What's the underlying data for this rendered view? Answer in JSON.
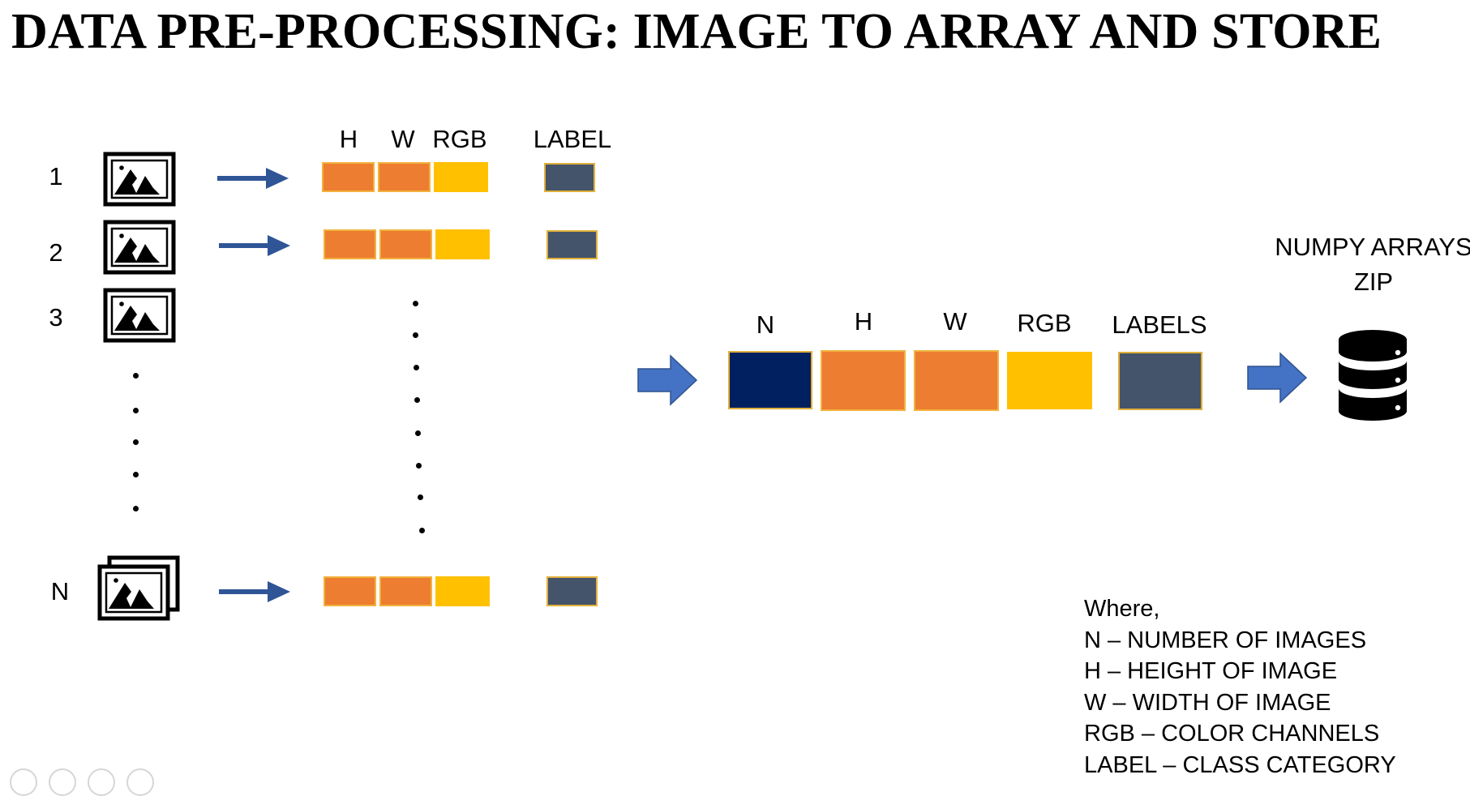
{
  "title": "DATA PRE-PROCESSING: IMAGE TO ARRAY AND STORE",
  "rows": [
    {
      "number": "1"
    },
    {
      "number": "2"
    },
    {
      "number": "3"
    },
    {
      "number": "N"
    }
  ],
  "row_headers": {
    "h": "H",
    "w": "W",
    "rgb": "RGB",
    "label": "LABEL"
  },
  "array_headers": {
    "n": "N",
    "h": "H",
    "w": "W",
    "rgb": "RGB",
    "labels": "LABELS"
  },
  "store": {
    "line1": "NUMPY ARRAYS",
    "line2": "ZIP"
  },
  "legend": [
    "Where,",
    "N – NUMBER OF IMAGES",
    "H – HEIGHT OF IMAGE",
    "W – WIDTH OF IMAGE",
    "RGB – COLOR CHANNELS",
    "LABEL – CLASS CATEGORY"
  ],
  "icons": {
    "image": "image-icon",
    "stacked_image": "stacked-images-icon",
    "arrow": "arrow-right-icon",
    "block_arrow": "block-arrow-right-icon",
    "database": "database-icon"
  },
  "colors": {
    "orange": "#ED7D31",
    "yellow": "#FFC000",
    "slate": "#44546A",
    "navy": "#002060",
    "arrow_dark": "#2F5597",
    "arrow_block": "#4472C4"
  }
}
